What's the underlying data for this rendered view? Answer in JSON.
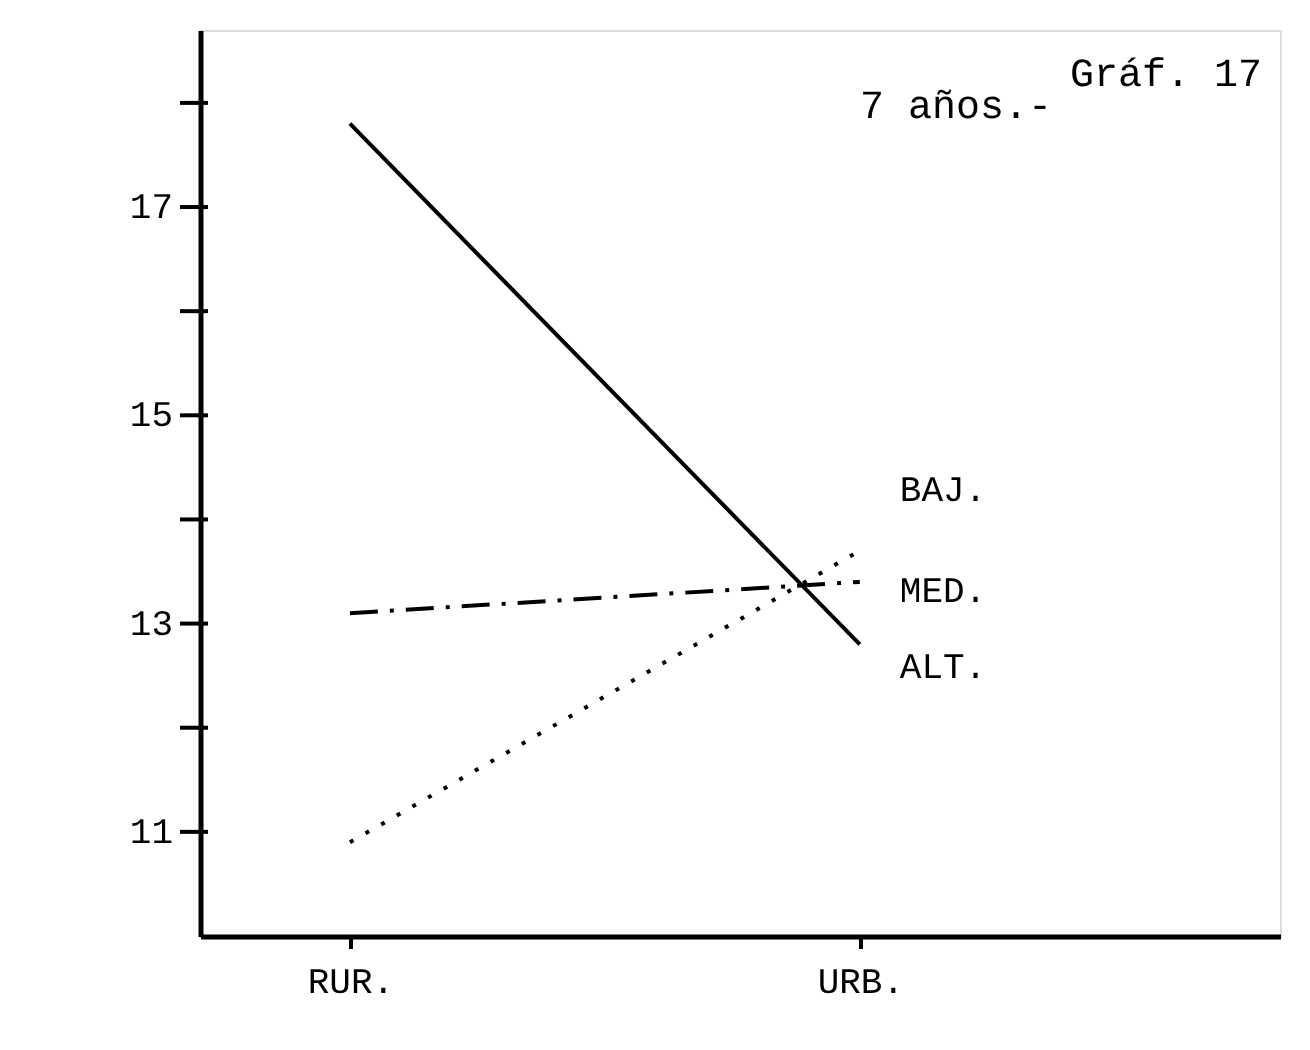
{
  "chart_data": {
    "type": "line",
    "title": "7 años.-",
    "annotations": [
      "Gráf. 17"
    ],
    "categories": [
      "RUR.",
      "URB."
    ],
    "series": [
      {
        "name": "BAJ.",
        "color": "#000000",
        "line_style": "dotted",
        "values": [
          10.9,
          13.7
        ]
      },
      {
        "name": "MED.",
        "color": "#000000",
        "line_style": "dashed",
        "values": [
          13.1,
          13.4
        ]
      },
      {
        "name": "ALT.",
        "color": "#000000",
        "line_style": "solid",
        "values": [
          17.8,
          12.8
        ]
      }
    ],
    "ylim": [
      10,
      18.7
    ],
    "yticks": [
      11,
      {
        "value": 12,
        "label": null
      },
      13,
      {
        "value": 14,
        "label": null
      },
      15,
      {
        "value": 16,
        "label": null
      },
      17,
      {
        "value": 18,
        "label": null
      }
    ],
    "grid": false,
    "marker": "none"
  }
}
